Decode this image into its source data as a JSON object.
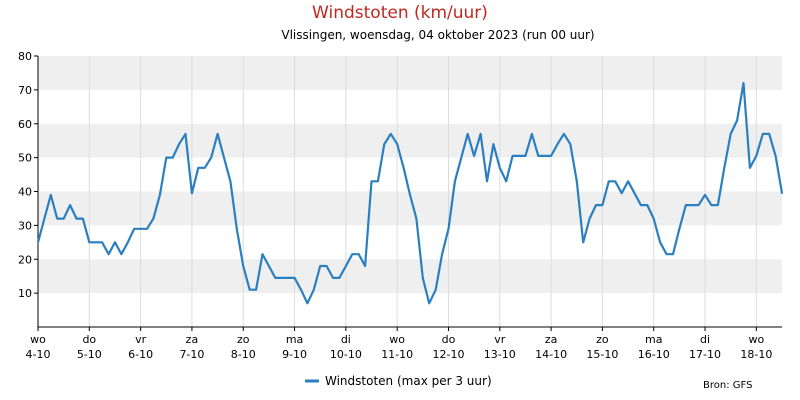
{
  "chart_data": {
    "type": "line",
    "title": "Windstoten (km/uur)",
    "subtitle": "Vlissingen, woensdag, 04 oktober 2023 (run 00 uur)",
    "xlabel": "",
    "ylabel": "",
    "ylim": [
      0,
      80
    ],
    "yticks": [
      10,
      20,
      30,
      40,
      50,
      60,
      70,
      80
    ],
    "xlim": [
      0,
      14.5
    ],
    "grid": true,
    "legend_position": "bottom-center",
    "source": "Bron: GFS",
    "x_tick_labels": [
      {
        "day": "wo",
        "date": "4-10"
      },
      {
        "day": "do",
        "date": "5-10"
      },
      {
        "day": "vr",
        "date": "6-10"
      },
      {
        "day": "za",
        "date": "7-10"
      },
      {
        "day": "zo",
        "date": "8-10"
      },
      {
        "day": "ma",
        "date": "9-10"
      },
      {
        "day": "di",
        "date": "10-10"
      },
      {
        "day": "wo",
        "date": "11-10"
      },
      {
        "day": "do",
        "date": "12-10"
      },
      {
        "day": "vr",
        "date": "13-10"
      },
      {
        "day": "za",
        "date": "14-10"
      },
      {
        "day": "zo",
        "date": "15-10"
      },
      {
        "day": "ma",
        "date": "16-10"
      },
      {
        "day": "di",
        "date": "17-10"
      },
      {
        "day": "wo",
        "date": "18-10"
      }
    ],
    "series": [
      {
        "name": "Windstoten (max per 3 uur)",
        "color": "#2a7fc1",
        "x": [
          0,
          0.125,
          0.25,
          0.375,
          0.5,
          0.625,
          0.75,
          0.875,
          1,
          1.125,
          1.25,
          1.375,
          1.5,
          1.625,
          1.75,
          1.875,
          2,
          2.125,
          2.25,
          2.375,
          2.5,
          2.625,
          2.75,
          2.875,
          3,
          3.125,
          3.25,
          3.375,
          3.5,
          3.625,
          3.75,
          3.875,
          4,
          4.125,
          4.25,
          4.375,
          4.5,
          4.625,
          4.75,
          4.875,
          5,
          5.125,
          5.25,
          5.375,
          5.5,
          5.625,
          5.75,
          5.875,
          6,
          6.125,
          6.25,
          6.375,
          6.5,
          6.625,
          6.75,
          6.875,
          7,
          7.125,
          7.25,
          7.375,
          7.5,
          7.625,
          7.75,
          7.875,
          8,
          8.125,
          8.25,
          8.375,
          8.5,
          8.625,
          8.75,
          8.875,
          9,
          9.125,
          9.25,
          9.375,
          9.5,
          9.625,
          9.75,
          9.875,
          10,
          10.125,
          10.25,
          10.375,
          10.5,
          10.625,
          10.75,
          10.875,
          11,
          11.125,
          11.25,
          11.375,
          11.5,
          11.625,
          11.75,
          11.875,
          12,
          12.125,
          12.25,
          12.375,
          12.5,
          12.625,
          12.75,
          12.875,
          13,
          13.125,
          13.25,
          13.375,
          13.5,
          13.625,
          13.75,
          13.875,
          14,
          14.125,
          14.25,
          14.375,
          14.5
        ],
        "values": [
          25,
          32,
          39,
          32,
          32,
          36,
          32,
          32,
          25,
          25,
          25,
          21.5,
          25,
          21.5,
          25,
          29,
          29,
          29,
          32,
          39,
          50,
          50,
          54,
          57,
          39.5,
          47,
          47,
          50,
          57,
          50,
          43,
          29,
          18,
          11,
          11,
          21.5,
          18,
          14.5,
          14.5,
          14.5,
          14.5,
          11,
          7,
          11,
          18,
          18,
          14.5,
          14.5,
          18,
          21.5,
          21.5,
          18,
          43,
          43,
          54,
          57,
          54,
          47,
          39,
          32,
          14.5,
          7,
          11,
          21.5,
          29,
          43,
          50,
          57,
          50.5,
          57,
          43,
          54,
          47,
          43,
          50.5,
          50.5,
          50.5,
          57,
          50.5,
          50.5,
          50.5,
          54,
          57,
          54,
          43,
          25,
          32,
          36,
          36,
          43,
          43,
          39.5,
          43,
          39.5,
          36,
          36,
          32,
          25,
          21.5,
          21.5,
          29,
          36,
          36,
          36,
          39,
          36,
          36,
          47,
          57,
          61,
          72,
          47,
          50.5,
          57,
          57,
          50.5,
          39.5
        ]
      }
    ]
  }
}
